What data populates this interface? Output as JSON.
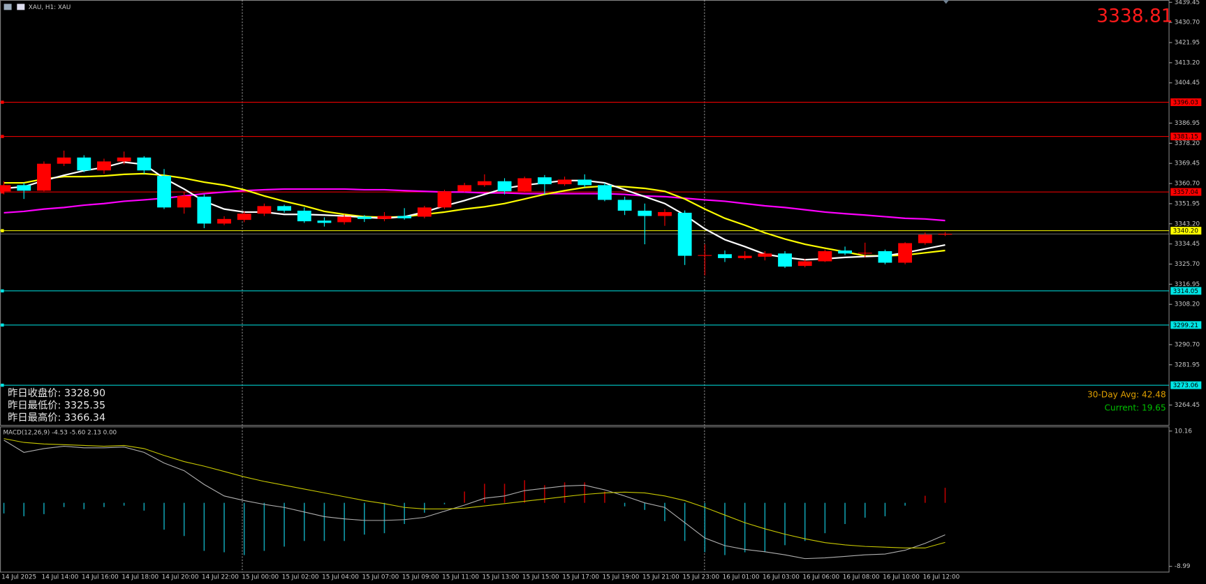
{
  "header": {
    "title": "XAU, H1: XAU"
  },
  "chart_data": [
    {
      "type": "candlestick",
      "categories": [
        "14 Jul 2025",
        null,
        "14 Jul 14:00",
        null,
        "14 Jul 16:00",
        null,
        "14 Jul 18:00",
        null,
        "14 Jul 20:00",
        null,
        "14 Jul 22:00",
        null,
        "15 Jul 00:00",
        null,
        "15 Jul 02:00",
        null,
        "15 Jul 04:00",
        null,
        "15 Jul 07:00",
        null,
        "15 Jul 09:00",
        null,
        "15 Jul 11:00",
        null,
        "15 Jul 13:00",
        null,
        "15 Jul 15:00",
        null,
        "15 Jul 17:00",
        null,
        "15 Jul 19:00",
        null,
        "15 Jul 21:00",
        null,
        "15 Jul 23:00",
        null,
        "16 Jul 01:00",
        null,
        "16 Jul 03:00",
        null,
        "16 Jul 06:00",
        null,
        "16 Jul 08:00",
        null,
        "16 Jul 10:00",
        null,
        "16 Jul 12:00",
        null
      ],
      "open": [
        3357.3,
        3360.0,
        3357.6,
        3369.3,
        3372.0,
        3366.4,
        3370.3,
        3372.0,
        3364.0,
        3350.3,
        3355.0,
        3343.3,
        3344.9,
        3347.6,
        3350.9,
        3348.9,
        3344.6,
        3343.9,
        3346.3,
        3345.3,
        3346.6,
        3346.3,
        3350.3,
        3357.3,
        3360.0,
        3361.7,
        3357.3,
        3363.4,
        3360.4,
        3362.4,
        3360.0,
        3353.6,
        3348.9,
        3346.6,
        3348.0,
        3329.3,
        3330.0,
        3328.3,
        3328.9,
        3330.3,
        3324.9,
        3326.9,
        3331.6,
        3330.3,
        3331.3,
        3326.3,
        3334.8,
        3338.5
      ],
      "high": [
        3361.7,
        3361.0,
        3370.3,
        3375.0,
        3373.0,
        3371.5,
        3374.6,
        3372.6,
        3367.0,
        3357.0,
        3356.0,
        3346.5,
        3348.6,
        3352.0,
        3351.5,
        3350.3,
        3346.0,
        3347.3,
        3347.0,
        3348.3,
        3350.0,
        3351.0,
        3358.0,
        3361.0,
        3364.7,
        3363.0,
        3363.7,
        3364.4,
        3363.7,
        3364.7,
        3361.0,
        3355.0,
        3352.0,
        3349.6,
        3349.0,
        3334.3,
        3331.6,
        3331.3,
        3331.3,
        3331.3,
        3327.9,
        3332.0,
        3333.3,
        3335.0,
        3332.0,
        3335.2,
        3339.4,
        3339.6
      ],
      "low": [
        3356.0,
        3354.0,
        3357.3,
        3368.3,
        3365.6,
        3365.0,
        3369.0,
        3365.0,
        3349.6,
        3347.6,
        3341.3,
        3342.6,
        3343.9,
        3346.6,
        3348.0,
        3343.6,
        3342.0,
        3342.9,
        3344.0,
        3344.3,
        3345.0,
        3345.6,
        3349.6,
        3357.0,
        3359.3,
        3356.0,
        3357.0,
        3356.0,
        3359.7,
        3359.0,
        3353.0,
        3347.0,
        3334.3,
        3342.3,
        3325.3,
        3320.8,
        3326.6,
        3327.6,
        3327.3,
        3324.0,
        3324.3,
        3326.6,
        3329.6,
        3328.6,
        3325.6,
        3325.6,
        3334.1,
        3337.9
      ],
      "close": [
        3360.0,
        3357.6,
        3369.3,
        3372.0,
        3366.4,
        3370.3,
        3372.0,
        3366.4,
        3350.3,
        3355.3,
        3343.3,
        3345.3,
        3347.6,
        3350.9,
        3348.9,
        3344.3,
        3343.6,
        3346.3,
        3345.3,
        3346.6,
        3345.6,
        3350.3,
        3357.3,
        3360.0,
        3361.7,
        3357.3,
        3363.0,
        3360.4,
        3362.4,
        3360.0,
        3353.6,
        3348.9,
        3346.6,
        3348.3,
        3329.3,
        3329.6,
        3328.3,
        3329.3,
        3330.3,
        3324.6,
        3326.9,
        3331.3,
        3330.3,
        3330.6,
        3326.3,
        3334.8,
        3338.5,
        3338.81
      ],
      "up_color": "#ff0000",
      "down_color": "#00ffff",
      "overlays": [
        {
          "color": "#ff00ff",
          "values": [
            3348.0,
            3348.6,
            3349.6,
            3350.3,
            3351.3,
            3352.0,
            3353.0,
            3353.6,
            3354.3,
            3355.3,
            3356.3,
            3357.0,
            3357.6,
            3358.0,
            3358.3,
            3358.3,
            3358.3,
            3358.3,
            3358.0,
            3358.0,
            3357.6,
            3357.3,
            3357.0,
            3357.0,
            3356.6,
            3356.6,
            3356.3,
            3356.3,
            3356.3,
            3356.3,
            3356.3,
            3356.0,
            3355.3,
            3355.0,
            3354.3,
            3353.6,
            3353.0,
            3352.0,
            3351.0,
            3350.3,
            3349.3,
            3348.3,
            3347.6,
            3347.0,
            3346.3,
            3345.6,
            3345.3,
            3344.6
          ]
        },
        {
          "color": "#ffff00",
          "values": [
            3361.0,
            3361.0,
            3362.7,
            3363.7,
            3363.7,
            3364.0,
            3364.7,
            3365.0,
            3364.3,
            3363.0,
            3361.3,
            3360.0,
            3358.0,
            3355.3,
            3353.0,
            3351.0,
            3348.6,
            3347.3,
            3346.3,
            3346.0,
            3346.3,
            3347.3,
            3348.3,
            3349.6,
            3350.6,
            3352.0,
            3354.0,
            3356.0,
            3357.6,
            3359.0,
            3359.6,
            3359.3,
            3358.6,
            3357.3,
            3354.0,
            3349.6,
            3345.6,
            3342.6,
            3339.3,
            3336.6,
            3334.3,
            3332.6,
            3331.0,
            3329.3,
            3329.3,
            3329.6,
            3330.6,
            3331.6
          ]
        },
        {
          "color": "#ffffff",
          "values": [
            3358.6,
            3359.3,
            3362.0,
            3364.3,
            3366.3,
            3367.7,
            3370.0,
            3369.0,
            3363.0,
            3358.3,
            3353.0,
            3349.6,
            3348.3,
            3348.3,
            3347.3,
            3347.3,
            3347.0,
            3346.6,
            3346.0,
            3345.6,
            3346.3,
            3348.3,
            3351.0,
            3353.3,
            3356.0,
            3358.6,
            3360.0,
            3361.0,
            3362.0,
            3362.0,
            3361.0,
            3358.0,
            3355.0,
            3352.0,
            3347.0,
            3341.0,
            3336.3,
            3333.3,
            3330.0,
            3328.6,
            3327.6,
            3328.0,
            3328.6,
            3329.0,
            3329.3,
            3330.6,
            3332.3,
            3334.0
          ]
        }
      ],
      "levels": [
        {
          "value": 3396.03,
          "color": "#ff0000"
        },
        {
          "value": 3381.15,
          "color": "#ff0000"
        },
        {
          "value": 3357.04,
          "color": "#ff0000"
        },
        {
          "value": 3340.2,
          "label": "3340.20",
          "color": "#ffff00"
        },
        {
          "value": 3314.05,
          "color": "#00e5e5"
        },
        {
          "value": 3299.21,
          "color": "#00e5e5"
        },
        {
          "value": 3273.06,
          "color": "#00e5e5"
        }
      ],
      "last_price": 3338.81,
      "ylim": [
        3255.8,
        3440.45
      ],
      "yticks": [
        3439.45,
        {
          "value": 3430.7,
          "label": "3430.70"
        },
        3421.95,
        {
          "value": 3413.2,
          "label": "3413.20"
        },
        3404.45,
        3386.95,
        {
          "value": 3378.2,
          "label": "3378.20"
        },
        3369.45,
        {
          "value": 3360.7,
          "label": "3360.70"
        },
        3351.95,
        {
          "value": 3343.2,
          "label": "3343.20"
        },
        3334.45,
        {
          "value": 3325.7,
          "label": "3325.70"
        },
        3316.95,
        {
          "value": 3308.2,
          "label": "3308.20"
        },
        {
          "value": 3290.7,
          "label": "3290.70"
        },
        3281.95,
        3264.45
      ],
      "info": [
        "昨日收盘价: 3328.90",
        "昨日最低价: 3325.35",
        "昨日最高价: 3366.34"
      ],
      "stats": [
        {
          "text": "30-Day Avg: 42.48",
          "color": "#e0a000"
        },
        {
          "text": "Current: 19.65",
          "color": "#00c000"
        }
      ]
    },
    {
      "type": "macd",
      "title": "MACD(12,26,9) -4.53 -5.60 2.13 0.00",
      "histogram": [
        -1.5,
        -1.9,
        -1.6,
        -0.6,
        -0.9,
        -0.6,
        -0.4,
        -1.1,
        -3.8,
        -4.7,
        -6.8,
        -7.0,
        -7.4,
        -6.8,
        -6.2,
        -5.4,
        -5.4,
        -5.4,
        -4.5,
        -4.3,
        -3.0,
        -1.4,
        -0.2,
        1.6,
        2.7,
        2.7,
        3.2,
        2.5,
        2.9,
        2.9,
        1.6,
        -0.5,
        -1.0,
        -2.6,
        -5.4,
        -7.0,
        -7.4,
        -7.0,
        -7.0,
        -6.0,
        -5.4,
        -4.3,
        -3.0,
        -2.1,
        -1.9,
        -0.4,
        1.0,
        2.13
      ],
      "up_color": "#c00000",
      "down_color": "#10a0b0",
      "series": [
        {
          "color": "#b0b0b0",
          "values": [
            8.87,
            7.14,
            7.68,
            8.01,
            7.79,
            7.79,
            7.9,
            7.14,
            5.63,
            4.55,
            2.6,
            0.97,
            0.32,
            -0.22,
            -0.65,
            -1.3,
            -1.95,
            -2.27,
            -2.49,
            -2.49,
            -2.38,
            -2.06,
            -1.19,
            -0.32,
            0.65,
            0.97,
            1.73,
            2.06,
            2.38,
            2.49,
            1.84,
            0.97,
            0.0,
            -0.65,
            -2.81,
            -4.98,
            -6.06,
            -6.6,
            -6.93,
            -7.36,
            -7.9,
            -7.79,
            -7.58,
            -7.36,
            -7.25,
            -6.71,
            -5.74,
            -4.53
          ]
        },
        {
          "color": "#c8c800",
          "values": [
            9.09,
            8.55,
            8.33,
            8.23,
            8.12,
            8.01,
            8.12,
            7.68,
            6.71,
            5.84,
            5.19,
            4.44,
            3.68,
            3.03,
            2.49,
            1.95,
            1.41,
            0.87,
            0.32,
            -0.11,
            -0.65,
            -0.87,
            -0.87,
            -0.76,
            -0.43,
            -0.11,
            0.22,
            0.54,
            0.87,
            1.19,
            1.41,
            1.52,
            1.41,
            0.97,
            0.32,
            -0.65,
            -1.73,
            -2.81,
            -3.68,
            -4.44,
            -5.09,
            -5.63,
            -5.95,
            -6.17,
            -6.28,
            -6.39,
            -6.39,
            -5.6
          ]
        }
      ],
      "ylim": [
        -9.86,
        10.81
      ],
      "yticks": [
        10.16,
        -8.99
      ]
    }
  ]
}
